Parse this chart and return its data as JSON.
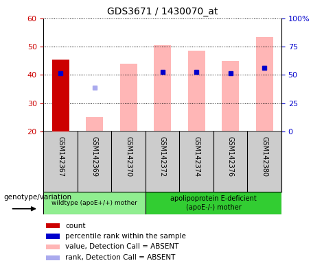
{
  "title": "GDS3671 / 1430070_at",
  "samples": [
    "GSM142367",
    "GSM142369",
    "GSM142370",
    "GSM142372",
    "GSM142374",
    "GSM142376",
    "GSM142380"
  ],
  "group1_name": "wildtype (apoE+/+) mother",
  "group1_color": "#90ee90",
  "group1_indices": [
    0,
    1,
    2
  ],
  "group2_name": "apolipoprotein E-deficient\n(apoE-/-) mother",
  "group2_color": "#32cd32",
  "group2_indices": [
    3,
    4,
    5,
    6
  ],
  "count_values": [
    45.5,
    null,
    null,
    null,
    null,
    null,
    null
  ],
  "count_color": "#cc0000",
  "pink_bar_values": [
    null,
    25.0,
    44.0,
    50.5,
    48.5,
    45.0,
    53.5
  ],
  "pink_bar_color": "#ffb6b6",
  "blue_dot_values": [
    40.5,
    null,
    null,
    41.0,
    41.0,
    40.5,
    42.5
  ],
  "blue_dot2_values": [
    null,
    35.5,
    null,
    null,
    null,
    null,
    null
  ],
  "blue_dot_color": "#0000cc",
  "blue_dot2_color": "#aaaaee",
  "ylim_left": [
    20,
    60
  ],
  "ylim_right": [
    0,
    100
  ],
  "yticks_left": [
    20,
    30,
    40,
    50,
    60
  ],
  "yticks_right_vals": [
    0,
    25,
    50,
    75,
    100
  ],
  "yticks_right_labels": [
    "0",
    "25",
    "50",
    "75",
    "100%"
  ],
  "ylabel_left_color": "#cc0000",
  "ylabel_right_color": "#0000cc",
  "bar_bottom": 20,
  "legend_items": [
    {
      "label": "count",
      "color": "#cc0000"
    },
    {
      "label": "percentile rank within the sample",
      "color": "#0000cc"
    },
    {
      "label": "value, Detection Call = ABSENT",
      "color": "#ffb6b6"
    },
    {
      "label": "rank, Detection Call = ABSENT",
      "color": "#aaaaee"
    }
  ],
  "genotype_label": "genotype/variation",
  "background_color": "#ffffff",
  "axis_area_color": "#cccccc",
  "bar_width": 0.5
}
